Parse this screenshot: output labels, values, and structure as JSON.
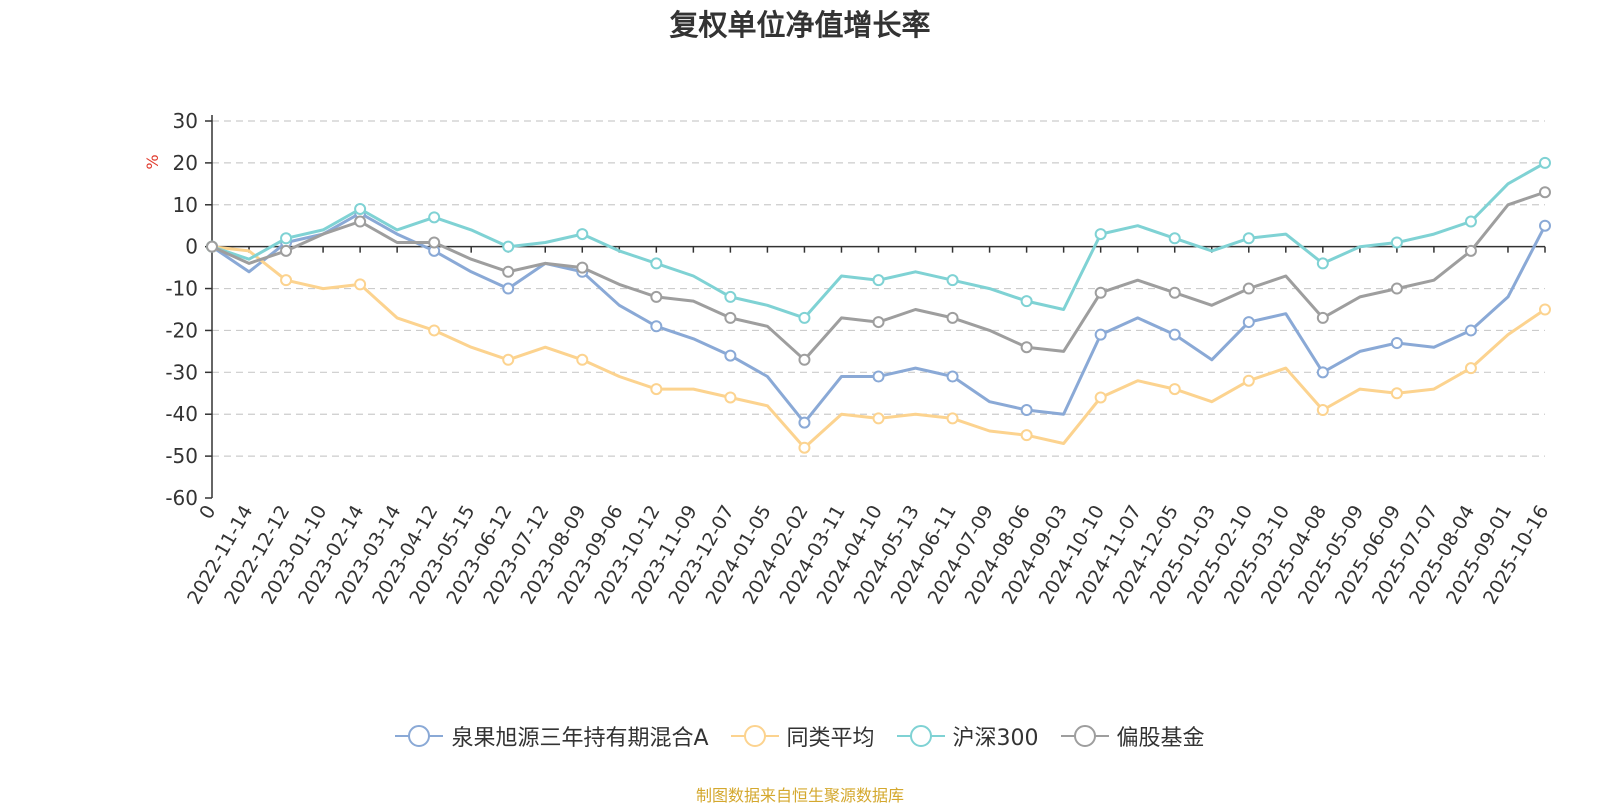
{
  "chart_data": {
    "type": "line",
    "title": "复权单位净值增长率",
    "ylabel": "%",
    "xlabel": "",
    "ylim": [
      -60,
      30
    ],
    "yticks": [
      30,
      20,
      10,
      0,
      -10,
      -20,
      -30,
      -40,
      -50,
      -60
    ],
    "grid": "horizontal-dashed",
    "legend_position": "bottom-center",
    "categories": [
      "0",
      "2022-11-14",
      "2022-12-12",
      "2023-01-10",
      "2023-02-14",
      "2023-03-14",
      "2023-04-12",
      "2023-05-15",
      "2023-06-12",
      "2023-07-12",
      "2023-08-09",
      "2023-09-06",
      "2023-10-12",
      "2023-11-09",
      "2023-12-07",
      "2024-01-05",
      "2024-02-02",
      "2024-03-11",
      "2024-04-10",
      "2024-05-13",
      "2024-06-11",
      "2024-07-09",
      "2024-08-06",
      "2024-09-03",
      "2024-10-10",
      "2024-11-07",
      "2024-12-05",
      "2025-01-03",
      "2025-02-10",
      "2025-03-10",
      "2025-04-08",
      "2025-05-09",
      "2025-06-09",
      "2025-07-07",
      "2025-08-04",
      "2025-09-01",
      "2025-10-16"
    ],
    "series": [
      {
        "name": "泉果旭源三年持有期混合A",
        "color": "#8aa9d6",
        "values": [
          0,
          -6,
          1,
          3,
          8,
          3,
          -1,
          -6,
          -10,
          -4,
          -6,
          -14,
          -19,
          -22,
          -26,
          -31,
          -42,
          -31,
          -31,
          -29,
          -31,
          -37,
          -39,
          -40,
          -21,
          -17,
          -21,
          -27,
          -18,
          -16,
          -30,
          -25,
          -23,
          -24,
          -20,
          -12,
          5
        ]
      },
      {
        "name": "同类平均",
        "color": "#fcd38f",
        "values": [
          0,
          -1,
          -8,
          -10,
          -9,
          -17,
          -20,
          -24,
          -27,
          -24,
          -27,
          -31,
          -34,
          -34,
          -36,
          -38,
          -48,
          -40,
          -41,
          -40,
          -41,
          -44,
          -45,
          -47,
          -36,
          -32,
          -34,
          -37,
          -32,
          -29,
          -39,
          -34,
          -35,
          -34,
          -29,
          -21,
          -15
        ]
      },
      {
        "name": "沪深300",
        "color": "#7fd2d4",
        "values": [
          0,
          -3,
          2,
          4,
          9,
          4,
          7,
          4,
          0,
          1,
          3,
          -1,
          -4,
          -7,
          -12,
          -14,
          -17,
          -7,
          -8,
          -6,
          -8,
          -10,
          -13,
          -15,
          3,
          5,
          2,
          -1,
          2,
          3,
          -4,
          0,
          1,
          3,
          6,
          15,
          20
        ]
      },
      {
        "name": "偏股基金",
        "color": "#9e9e9e",
        "values": [
          0,
          -4,
          -1,
          3,
          6,
          1,
          1,
          -3,
          -6,
          -4,
          -5,
          -9,
          -12,
          -13,
          -17,
          -19,
          -27,
          -17,
          -18,
          -15,
          -17,
          -20,
          -24,
          -25,
          -11,
          -8,
          -11,
          -14,
          -10,
          -7,
          -17,
          -12,
          -10,
          -8,
          -1,
          10,
          13
        ]
      }
    ],
    "source_note": "制图数据来自恒生聚源数据库"
  }
}
